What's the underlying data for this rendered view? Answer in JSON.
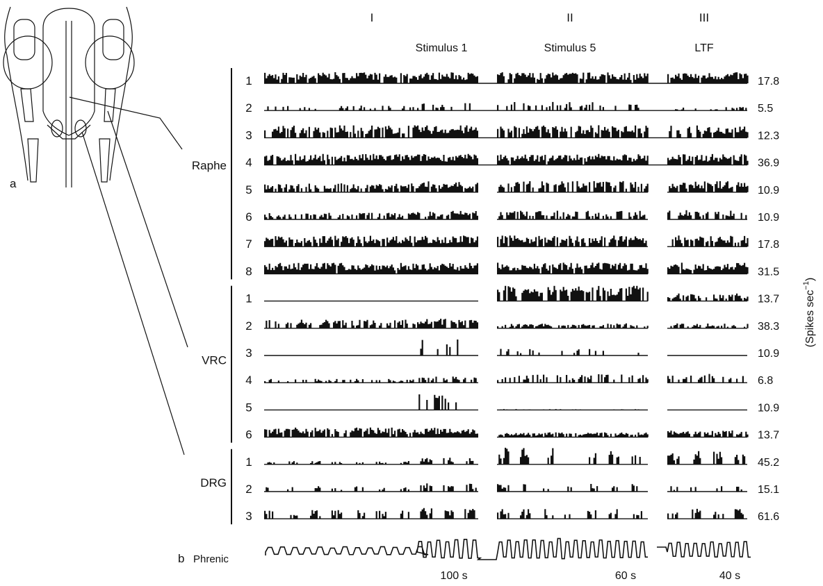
{
  "panel_labels": {
    "a": "a",
    "b": "b"
  },
  "columns": [
    {
      "heading": "I",
      "stimulus": "Stimulus 1",
      "duration": "100 s"
    },
    {
      "heading": "II",
      "stimulus": "Stimulus 5",
      "duration": "60 s"
    },
    {
      "heading": "III",
      "stimulus": "LTF",
      "duration": "40 s"
    }
  ],
  "groups": [
    {
      "label": "Raphe",
      "rows": [
        {
          "n": "1",
          "scale": "17.8"
        },
        {
          "n": "2",
          "scale": "5.5"
        },
        {
          "n": "3",
          "scale": "12.3"
        },
        {
          "n": "4",
          "scale": "36.9"
        },
        {
          "n": "5",
          "scale": "10.9"
        },
        {
          "n": "6",
          "scale": "10.9"
        },
        {
          "n": "7",
          "scale": "17.8"
        },
        {
          "n": "8",
          "scale": "31.5"
        }
      ]
    },
    {
      "label": "VRC",
      "rows": [
        {
          "n": "1",
          "scale": "13.7"
        },
        {
          "n": "2",
          "scale": "38.3"
        },
        {
          "n": "3",
          "scale": "10.9"
        },
        {
          "n": "4",
          "scale": "6.8"
        },
        {
          "n": "5",
          "scale": "10.9"
        },
        {
          "n": "6",
          "scale": "13.7"
        }
      ]
    },
    {
      "label": "DRG",
      "rows": [
        {
          "n": "1",
          "scale": "45.2"
        },
        {
          "n": "2",
          "scale": "15.1"
        },
        {
          "n": "3",
          "scale": "61.6"
        }
      ]
    }
  ],
  "phrenic_label": "Phrenic",
  "unit_label": {
    "text": "(Spikes sec",
    "exponent": "−1",
    "close": ")"
  }
}
